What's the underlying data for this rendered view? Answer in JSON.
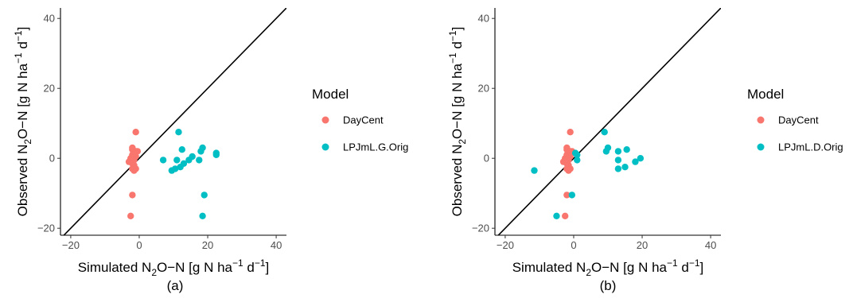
{
  "chart_data": [
    {
      "type": "scatter",
      "panel_label": "(a)",
      "xlabel": "Simulated N2O-N [g N ha-1 d-1]",
      "ylabel": "Observed N2O-N [g N ha-1 d-1]",
      "xlim": [
        -23,
        43
      ],
      "ylim": [
        -22,
        43
      ],
      "x_ticks": [
        -20,
        0,
        20,
        40
      ],
      "y_ticks": [
        -20,
        0,
        20,
        40
      ],
      "reference_line": "y = x",
      "grid": false,
      "legend": {
        "title": "Model",
        "position": "right",
        "entries": [
          {
            "label": "DayCent",
            "color": "#f8766d"
          },
          {
            "label": "LPJmL.G.Orig",
            "color": "#00bfc4"
          }
        ]
      },
      "series": [
        {
          "name": "DayCent",
          "color": "#f8766d",
          "points": [
            [
              -1,
              7.5
            ],
            [
              -2,
              3
            ],
            [
              -2,
              2.5
            ],
            [
              -1,
              2
            ],
            [
              -0.5,
              2
            ],
            [
              -1.5,
              1.5
            ],
            [
              -2,
              1
            ],
            [
              -1,
              0.5
            ],
            [
              -2.5,
              0
            ],
            [
              -1.5,
              -0.5
            ],
            [
              -3,
              -1
            ],
            [
              -2,
              -1.5
            ],
            [
              -1.5,
              -2
            ],
            [
              -1,
              -3
            ],
            [
              -2,
              -3
            ],
            [
              -1.5,
              -3.5
            ],
            [
              -2,
              -10.5
            ],
            [
              -2.5,
              -16.5
            ]
          ]
        },
        {
          "name": "LPJmL.G.Orig",
          "color": "#00bfc4",
          "points": [
            [
              11.5,
              7.5
            ],
            [
              7,
              -0.5
            ],
            [
              9.5,
              -3.5
            ],
            [
              10.5,
              -3
            ],
            [
              12,
              -2.5
            ],
            [
              11,
              -0.5
            ],
            [
              12.5,
              2.5
            ],
            [
              13,
              -1.5
            ],
            [
              14.5,
              -0.5
            ],
            [
              15.5,
              0.5
            ],
            [
              17.5,
              -0.5
            ],
            [
              18,
              2
            ],
            [
              18.5,
              3
            ],
            [
              22.5,
              1.5
            ],
            [
              22.5,
              1
            ],
            [
              19,
              -10.5
            ],
            [
              18.5,
              -16.5
            ]
          ]
        }
      ]
    },
    {
      "type": "scatter",
      "panel_label": "(b)",
      "xlabel": "Simulated N2O-N [g N ha-1 d-1]",
      "ylabel": "Observed N2O-N [g N ha-1 d-1]",
      "xlim": [
        -23,
        43
      ],
      "ylim": [
        -22,
        43
      ],
      "x_ticks": [
        -20,
        0,
        20,
        40
      ],
      "y_ticks": [
        -20,
        0,
        20,
        40
      ],
      "reference_line": "y = x",
      "grid": false,
      "legend": {
        "title": "Model",
        "position": "right",
        "entries": [
          {
            "label": "DayCent",
            "color": "#f8766d"
          },
          {
            "label": "LPJmL.D.Orig",
            "color": "#00bfc4"
          }
        ]
      },
      "series": [
        {
          "name": "DayCent",
          "color": "#f8766d",
          "points": [
            [
              -1,
              7.5
            ],
            [
              -2,
              3
            ],
            [
              -2,
              2.5
            ],
            [
              -1,
              2
            ],
            [
              -0.5,
              2
            ],
            [
              -1.5,
              1.5
            ],
            [
              -2,
              1
            ],
            [
              -1,
              0.5
            ],
            [
              -2.5,
              0
            ],
            [
              -1.5,
              -0.5
            ],
            [
              -3,
              -1
            ],
            [
              -2,
              -1.5
            ],
            [
              -1.5,
              -2
            ],
            [
              -1,
              -3
            ],
            [
              -2,
              -3
            ],
            [
              -1.5,
              -3.5
            ],
            [
              -2,
              -10.5
            ],
            [
              -2.5,
              -16.5
            ]
          ]
        },
        {
          "name": "LPJmL.D.Orig",
          "color": "#00bfc4",
          "points": [
            [
              9,
              7.5
            ],
            [
              -11.5,
              -3.5
            ],
            [
              -5,
              -16.5
            ],
            [
              -0.5,
              -10.5
            ],
            [
              0.5,
              1.5
            ],
            [
              1,
              -0.5
            ],
            [
              1,
              1
            ],
            [
              9.5,
              2
            ],
            [
              10,
              3
            ],
            [
              13,
              2
            ],
            [
              13,
              -0.5
            ],
            [
              13,
              -3
            ],
            [
              15,
              -2.5
            ],
            [
              15.5,
              2.5
            ],
            [
              18,
              -1
            ],
            [
              19.5,
              0
            ]
          ]
        }
      ]
    }
  ]
}
